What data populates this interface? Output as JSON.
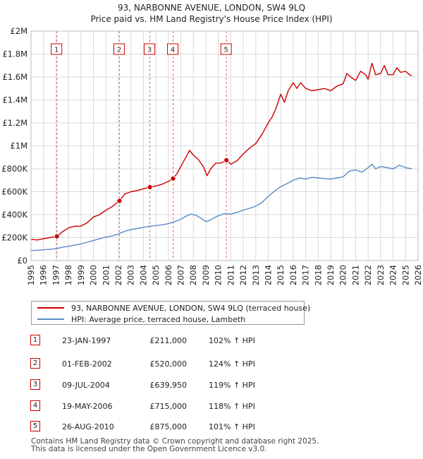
{
  "chart_data": {
    "type": "line",
    "title": "93, NARBONNE AVENUE, LONDON, SW4 9LQ",
    "subtitle": "Price paid vs. HM Land Registry's House Price Index (HPI)",
    "xlim": [
      1995,
      2026
    ],
    "ylim": [
      0,
      2000000
    ],
    "x_ticks": [
      "1995",
      "1996",
      "1997",
      "1998",
      "1999",
      "2000",
      "2001",
      "2002",
      "2003",
      "2004",
      "2005",
      "2006",
      "2007",
      "2008",
      "2009",
      "2010",
      "2011",
      "2012",
      "2013",
      "2014",
      "2015",
      "2016",
      "2017",
      "2018",
      "2019",
      "2020",
      "2021",
      "2022",
      "2023",
      "2024",
      "2025",
      "2026"
    ],
    "y_ticks": [
      {
        "value": 0,
        "label": "£0"
      },
      {
        "value": 200000,
        "label": "£200K"
      },
      {
        "value": 400000,
        "label": "£400K"
      },
      {
        "value": 600000,
        "label": "£600K"
      },
      {
        "value": 800000,
        "label": "£800K"
      },
      {
        "value": 1000000,
        "label": "£1M"
      },
      {
        "value": 1200000,
        "label": "£1.2M"
      },
      {
        "value": 1400000,
        "label": "£1.4M"
      },
      {
        "value": 1600000,
        "label": "£1.6M"
      },
      {
        "value": 1800000,
        "label": "£1.8M"
      },
      {
        "value": 2000000,
        "label": "£2M"
      }
    ],
    "series": [
      {
        "name": "93, NARBONNE AVENUE, LONDON, SW4 9LQ (terraced house)",
        "color": "#cc0000",
        "x": [
          1995.0,
          1995.5,
          1996.0,
          1996.5,
          1997.07,
          1997.5,
          1998.0,
          1998.5,
          1999.0,
          1999.5,
          2000.0,
          2000.5,
          2001.0,
          2001.5,
          2002.08,
          2002.5,
          2003.0,
          2003.5,
          2004.0,
          2004.52,
          2005.0,
          2005.5,
          2006.0,
          2006.38,
          2006.7,
          2007.0,
          2007.4,
          2007.7,
          2008.0,
          2008.4,
          2008.8,
          2009.1,
          2009.4,
          2009.8,
          2010.2,
          2010.65,
          2011.0,
          2011.5,
          2012.0,
          2012.5,
          2013.0,
          2013.5,
          2014.0,
          2014.3,
          2014.6,
          2015.0,
          2015.3,
          2015.6,
          2016.0,
          2016.3,
          2016.6,
          2017.0,
          2017.5,
          2018.0,
          2018.5,
          2019.0,
          2019.5,
          2020.0,
          2020.3,
          2020.6,
          2021.0,
          2021.4,
          2021.8,
          2022.0,
          2022.3,
          2022.6,
          2023.0,
          2023.3,
          2023.6,
          2024.0,
          2024.3,
          2024.6,
          2025.0,
          2025.3,
          2025.5
        ],
        "values": [
          185000,
          180000,
          190000,
          200000,
          211000,
          250000,
          285000,
          300000,
          300000,
          330000,
          380000,
          400000,
          440000,
          470000,
          520000,
          580000,
          600000,
          610000,
          625000,
          639950,
          650000,
          665000,
          690000,
          715000,
          760000,
          820000,
          900000,
          960000,
          920000,
          880000,
          820000,
          740000,
          800000,
          850000,
          850000,
          875000,
          840000,
          870000,
          930000,
          980000,
          1020000,
          1100000,
          1200000,
          1250000,
          1320000,
          1450000,
          1380000,
          1480000,
          1550000,
          1500000,
          1550000,
          1500000,
          1480000,
          1490000,
          1500000,
          1480000,
          1520000,
          1540000,
          1630000,
          1600000,
          1570000,
          1650000,
          1620000,
          1580000,
          1720000,
          1620000,
          1630000,
          1700000,
          1620000,
          1620000,
          1680000,
          1640000,
          1650000,
          1620000,
          1610000
        ]
      },
      {
        "name": "HPI: Average price, terraced house, Lambeth",
        "color": "#5b8ac6",
        "x": [
          1995.0,
          1995.5,
          1996.0,
          1996.5,
          1997.0,
          1997.5,
          1998.0,
          1998.5,
          1999.0,
          1999.5,
          2000.0,
          2000.5,
          2001.0,
          2001.5,
          2002.0,
          2002.5,
          2003.0,
          2003.5,
          2004.0,
          2004.5,
          2005.0,
          2005.5,
          2006.0,
          2006.5,
          2007.0,
          2007.4,
          2007.8,
          2008.2,
          2008.6,
          2009.0,
          2009.3,
          2009.7,
          2010.0,
          2010.5,
          2011.0,
          2011.5,
          2012.0,
          2012.5,
          2013.0,
          2013.5,
          2014.0,
          2014.5,
          2015.0,
          2015.5,
          2016.0,
          2016.5,
          2017.0,
          2017.5,
          2018.0,
          2018.5,
          2019.0,
          2019.5,
          2020.0,
          2020.5,
          2021.0,
          2021.5,
          2022.0,
          2022.3,
          2022.6,
          2023.0,
          2023.5,
          2024.0,
          2024.5,
          2025.0,
          2025.5
        ],
        "values": [
          88000,
          90000,
          94000,
          98000,
          104000,
          115000,
          125000,
          135000,
          145000,
          160000,
          175000,
          190000,
          205000,
          215000,
          232000,
          255000,
          270000,
          280000,
          290000,
          300000,
          305000,
          312000,
          322000,
          340000,
          360000,
          385000,
          405000,
          395000,
          370000,
          340000,
          350000,
          375000,
          390000,
          410000,
          405000,
          420000,
          440000,
          455000,
          475000,
          505000,
          560000,
          605000,
          645000,
          670000,
          700000,
          720000,
          710000,
          725000,
          720000,
          715000,
          710000,
          720000,
          730000,
          780000,
          790000,
          770000,
          810000,
          840000,
          800000,
          820000,
          810000,
          800000,
          830000,
          810000,
          800000
        ]
      }
    ],
    "sales": [
      {
        "num": "1",
        "date": "23-JAN-1997",
        "price": "£211,000",
        "hpi": "102% ↑ HPI",
        "x": 1997.07,
        "value": 211000
      },
      {
        "num": "2",
        "date": "01-FEB-2002",
        "price": "£520,000",
        "hpi": "124% ↑ HPI",
        "x": 2002.08,
        "value": 520000
      },
      {
        "num": "3",
        "date": "09-JUL-2004",
        "price": "£639,950",
        "hpi": "119% ↑ HPI",
        "x": 2004.52,
        "value": 639950
      },
      {
        "num": "4",
        "date": "19-MAY-2006",
        "price": "£715,000",
        "hpi": "118% ↑ HPI",
        "x": 2006.38,
        "value": 715000
      },
      {
        "num": "5",
        "date": "26-AUG-2010",
        "price": "£875,000",
        "hpi": "101% ↑ HPI",
        "x": 2010.65,
        "value": 875000
      }
    ],
    "legend_position": "below"
  },
  "legend": {
    "property_label": "93, NARBONNE AVENUE, LONDON, SW4 9LQ (terraced house)",
    "hpi_label": "HPI: Average price, terraced house, Lambeth",
    "property_color": "#cc0000",
    "hpi_color": "#5b8ac6"
  },
  "footer": {
    "line1": "Contains HM Land Registry data © Crown copyright and database right 2025.",
    "line2": "This data is licensed under the Open Government Licence v3.0."
  }
}
